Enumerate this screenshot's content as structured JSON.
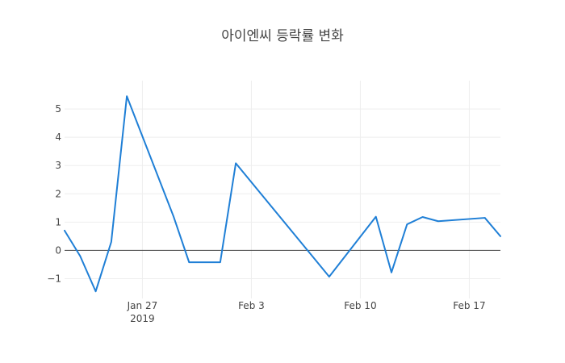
{
  "chart_data": {
    "type": "line",
    "title": "아이엔씨 등락률 변화",
    "xlabel": "",
    "ylabel": "",
    "xlim": [
      "2019-01-22",
      "2019-02-19"
    ],
    "ylim": [
      -1.7,
      6.0
    ],
    "grid": true,
    "legend": "none",
    "x_ticks": [
      {
        "date": "2019-01-27",
        "label": "Jan 27",
        "sublabel": "2019"
      },
      {
        "date": "2019-02-03",
        "label": "Feb 3",
        "sublabel": ""
      },
      {
        "date": "2019-02-10",
        "label": "Feb 10",
        "sublabel": ""
      },
      {
        "date": "2019-02-17",
        "label": "Feb 17",
        "sublabel": ""
      }
    ],
    "y_ticks": [
      {
        "value": -1,
        "label": "−1"
      },
      {
        "value": 0,
        "label": "0"
      },
      {
        "value": 1,
        "label": "1"
      },
      {
        "value": 2,
        "label": "2"
      },
      {
        "value": 3,
        "label": "3"
      },
      {
        "value": 4,
        "label": "4"
      },
      {
        "value": 5,
        "label": "5"
      }
    ],
    "series": [
      {
        "color": "#1f7fd6",
        "x": [
          "2019-01-22",
          "2019-01-23",
          "2019-01-24",
          "2019-01-25",
          "2019-01-26",
          "2019-01-29",
          "2019-01-30",
          "2019-02-01",
          "2019-02-02",
          "2019-02-08",
          "2019-02-11",
          "2019-02-12",
          "2019-02-13",
          "2019-02-14",
          "2019-02-15",
          "2019-02-18",
          "2019-02-19"
        ],
        "values": [
          0.7,
          -0.2,
          -1.45,
          0.3,
          5.45,
          1.2,
          -0.42,
          -0.42,
          3.08,
          -0.93,
          1.19,
          -0.78,
          0.92,
          1.18,
          1.03,
          1.15,
          0.5
        ]
      }
    ]
  }
}
